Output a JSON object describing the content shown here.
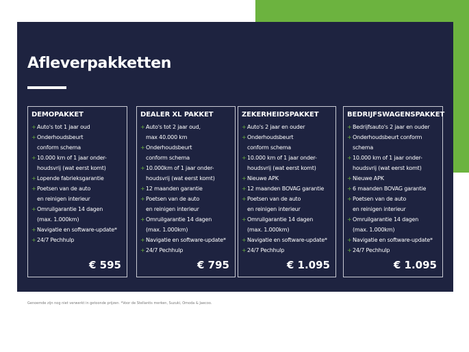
{
  "title": "Afleverpakketten",
  "packages": [
    {
      "name": "DEMOPAKKET",
      "price": "€ 595",
      "items": [
        [
          "Auto's tot 1 jaar oud"
        ],
        [
          "Onderhoudsbeurt",
          "conform schema"
        ],
        [
          "10.000 km of 1 jaar onder-",
          "houdsvrij (wat eerst komt)"
        ],
        [
          "Lopende fabrieksgarantie"
        ],
        [
          "Poetsen van de auto",
          "en reinigen interieur"
        ],
        [
          "Omruilgarantie 14 dagen",
          "(max. 1.000km)"
        ],
        [
          "Navigatie en software-update*"
        ],
        [
          "24/7 Pechhulp"
        ]
      ]
    },
    {
      "name": "DEALER XL PAKKET",
      "price": "€ 795",
      "items": [
        [
          "Auto's tot 2 jaar oud,",
          "max 40.000 km"
        ],
        [
          "Onderhoudsbeurt",
          "conform schema"
        ],
        [
          "10.000km of 1 jaar onder-",
          "houdsvrij (wat eerst komt)"
        ],
        [
          "12 maanden garantie"
        ],
        [
          "Poetsen van de auto",
          "en reinigen interieur"
        ],
        [
          "Omruilgarantie 14 dagen",
          "(max. 1.000km)"
        ],
        [
          "Navigatie en software-update*"
        ],
        [
          "24/7 Pechhulp"
        ]
      ]
    },
    {
      "name": "ZEKERHEIDSPAKKET",
      "price": "€ 1.095",
      "items": [
        [
          "Auto's 2 jaar en ouder"
        ],
        [
          "Onderhoudsbeurt",
          "conform schema"
        ],
        [
          "10.000 km of 1 jaar onder-",
          "houdsvrij (wat eerst komt)"
        ],
        [
          "Nieuwe APK"
        ],
        [
          "12 maanden BOVAG garantie"
        ],
        [
          "Poetsen van de auto",
          "en reinigen interieur"
        ],
        [
          "Omruilgarantie 14 dagen",
          "(max. 1.000km)"
        ],
        [
          "Navigatie en software-update*"
        ],
        [
          "24/7 Pechhulp"
        ]
      ]
    },
    {
      "name": "BEDRIJFSWAGENSPAKKET",
      "price": "€ 1.095",
      "items": [
        [
          "Bedrijfsauto's 2 jaar en ouder"
        ],
        [
          "Onderhoudsbeurt conform",
          "schema"
        ],
        [
          "10.000 km of 1 jaar onder-",
          "houdsvrij (wat eerst komt)"
        ],
        [
          "Nieuwe APK"
        ],
        [
          "6 maanden BOVAG garantie"
        ],
        [
          "Poetsen van de auto",
          "en reinigen interieur"
        ],
        [
          "Omruilgarantie 14 dagen",
          "(max. 1.000km)"
        ],
        [
          "Navigatie en software-update*"
        ],
        [
          "24/7 Pechhulp"
        ]
      ]
    }
  ],
  "footnote": "Genoemde zijn nog niet verwerkt in getoonde prijzen. *Voor de Stellantis merken, Suzuki, Omoda & Jaecoo.",
  "colors": {
    "navy": "#1e2340",
    "green": "#6cb33f"
  }
}
